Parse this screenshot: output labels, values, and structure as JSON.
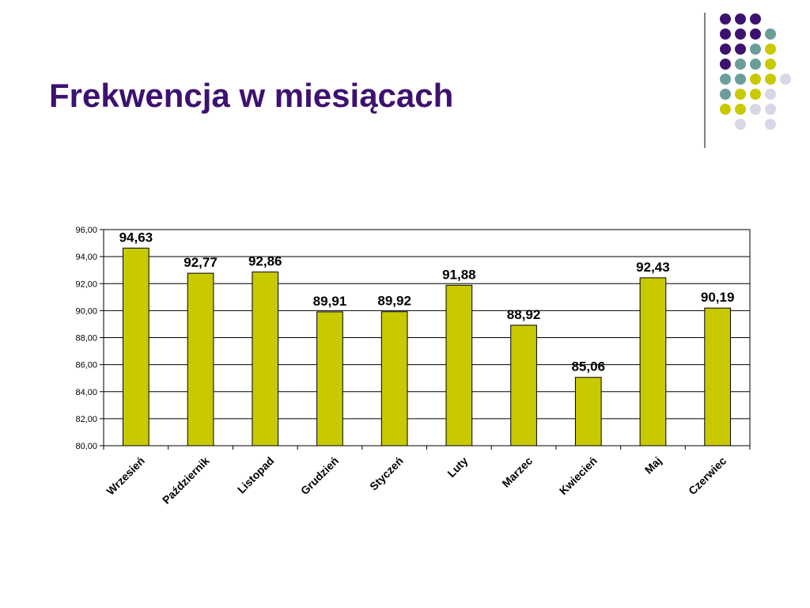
{
  "slide": {
    "title": "Frekwencja w miesiącach",
    "title_color": "#3d1170"
  },
  "decoration": {
    "colors": [
      "#3d1170",
      "#6b9d9a",
      "#c9c900",
      "#d7d7e8"
    ],
    "rule_color": "#555555"
  },
  "chart_data": {
    "type": "bar",
    "categories": [
      "Wrzesień",
      "Październik",
      "Listopad",
      "Grudzień",
      "Styczeń",
      "Luty",
      "Marzec",
      "Kwiecień",
      "Maj",
      "Czerwiec"
    ],
    "values": [
      94.63,
      92.77,
      92.86,
      89.91,
      89.92,
      91.88,
      88.92,
      85.06,
      92.43,
      90.19
    ],
    "value_labels": [
      "94,63",
      "92,77",
      "92,86",
      "89,91",
      "89,92",
      "91,88",
      "88,92",
      "85,06",
      "92,43",
      "90,19"
    ],
    "ylim": [
      80,
      96
    ],
    "yticks": [
      80,
      82,
      84,
      86,
      88,
      90,
      92,
      94,
      96
    ],
    "ytick_labels": [
      "80,00",
      "82,00",
      "84,00",
      "86,00",
      "88,00",
      "90,00",
      "92,00",
      "94,00",
      "96,00"
    ],
    "grid": true,
    "bar_color": "#c9c900",
    "bar_border_color": "#000000",
    "title": "",
    "xlabel": "",
    "ylabel": ""
  }
}
